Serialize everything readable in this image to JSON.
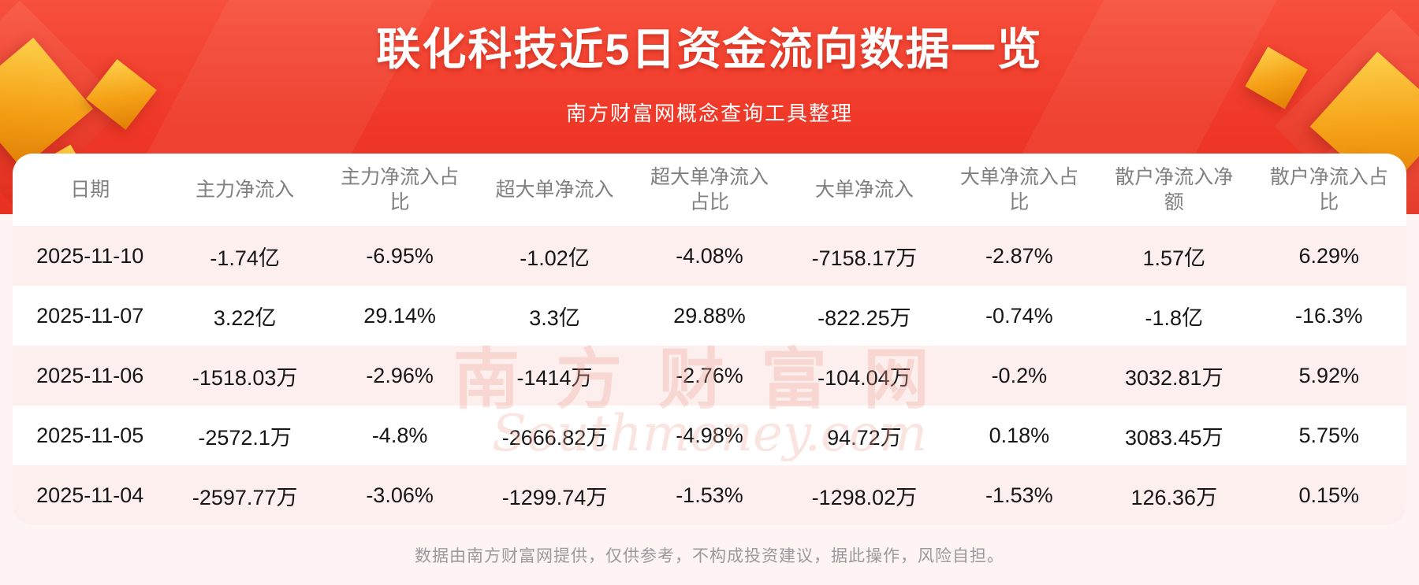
{
  "page": {
    "title": "联化科技近5日资金流向数据一览",
    "subtitle": "南方财富网概念查询工具整理",
    "footer": "数据由南方财富网提供，仅供参考，不构成投资建议，据此操作，风险自担。",
    "watermark_cn": "南方财富网",
    "watermark_en": "Southmoney.com"
  },
  "colors": {
    "banner_red": "#ef3828",
    "gold_accent": "#f5a016",
    "row_alt_pink": "#fdefee",
    "header_text": "#808080",
    "cell_text": "#161616",
    "footer_text": "#9a9a9a"
  },
  "chart_data": {
    "type": "table",
    "title": "联化科技近5日资金流向数据一览",
    "columns": [
      "日期",
      "主力净流入",
      "主力净流入占比",
      "超大单净流入",
      "超大单净流入占比",
      "大单净流入",
      "大单净流入占比",
      "散户净流入净额",
      "散户净流入占比"
    ],
    "rows": [
      [
        "2025-11-10",
        "-1.74亿",
        "-6.95%",
        "-1.02亿",
        "-4.08%",
        "-7158.17万",
        "-2.87%",
        "1.57亿",
        "6.29%"
      ],
      [
        "2025-11-07",
        "3.22亿",
        "29.14%",
        "3.3亿",
        "29.88%",
        "-822.25万",
        "-0.74%",
        "-1.8亿",
        "-16.3%"
      ],
      [
        "2025-11-06",
        "-1518.03万",
        "-2.96%",
        "-1414万",
        "-2.76%",
        "-104.04万",
        "-0.2%",
        "3032.81万",
        "5.92%"
      ],
      [
        "2025-11-05",
        "-2572.1万",
        "-4.8%",
        "-2666.82万",
        "-4.98%",
        "94.72万",
        "0.18%",
        "3083.45万",
        "5.75%"
      ],
      [
        "2025-11-04",
        "-2597.77万",
        "-3.06%",
        "-1299.74万",
        "-1.53%",
        "-1298.02万",
        "-1.53%",
        "126.36万",
        "0.15%"
      ]
    ]
  }
}
